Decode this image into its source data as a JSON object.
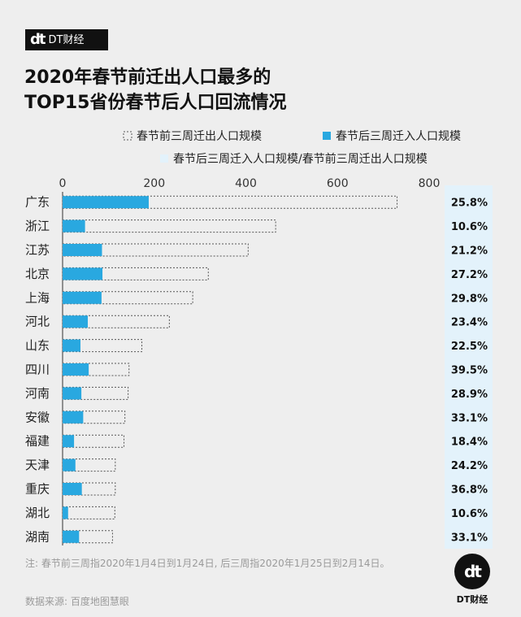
{
  "brand": {
    "mark": "dt",
    "name": "DT财经"
  },
  "title_line1": "2020年春节前迁出人口最多的",
  "title_line2": "TOP15省份春节后人口回流情况",
  "note": "注: 春节前三周指2020年1月4日到1月24日, 后三周指2020年1月25日到2月14日。",
  "source": "数据来源: 百度地图慧眼",
  "colors": {
    "bar_in": "#29a8e0",
    "ratio_bg": "#e3f2fb",
    "outline": "#555555"
  },
  "chart_data": {
    "type": "bar",
    "orientation": "horizontal",
    "title": "2020年春节前迁出人口最多的TOP15省份春节后人口回流情况",
    "xlim": [
      0,
      800
    ],
    "xticks": [
      0,
      200,
      400,
      600,
      800
    ],
    "categories": [
      "广东",
      "浙江",
      "江苏",
      "北京",
      "上海",
      "河北",
      "山东",
      "四川",
      "河南",
      "安徽",
      "福建",
      "天津",
      "重庆",
      "湖北",
      "湖南"
    ],
    "series": [
      {
        "name": "春节前三周迁出人口规模",
        "style": "dashed-outline",
        "values": [
          730,
          465,
          405,
          318,
          284,
          233,
          173,
          145,
          143,
          136,
          134,
          115,
          115,
          114,
          109
        ]
      },
      {
        "name": "春节后三周迁入人口规模",
        "style": "solid",
        "values": [
          188,
          49,
          86,
          87,
          85,
          55,
          39,
          57,
          41,
          45,
          25,
          28,
          42,
          12,
          36
        ]
      }
    ],
    "ratio": {
      "name": "春节后三周迁入人口规模/春节前三周迁出人口规模",
      "labels": [
        "25.8%",
        "10.6%",
        "21.2%",
        "27.2%",
        "29.8%",
        "23.4%",
        "22.5%",
        "39.5%",
        "28.9%",
        "33.1%",
        "18.4%",
        "24.2%",
        "36.8%",
        "10.6%",
        "33.1%"
      ]
    }
  }
}
